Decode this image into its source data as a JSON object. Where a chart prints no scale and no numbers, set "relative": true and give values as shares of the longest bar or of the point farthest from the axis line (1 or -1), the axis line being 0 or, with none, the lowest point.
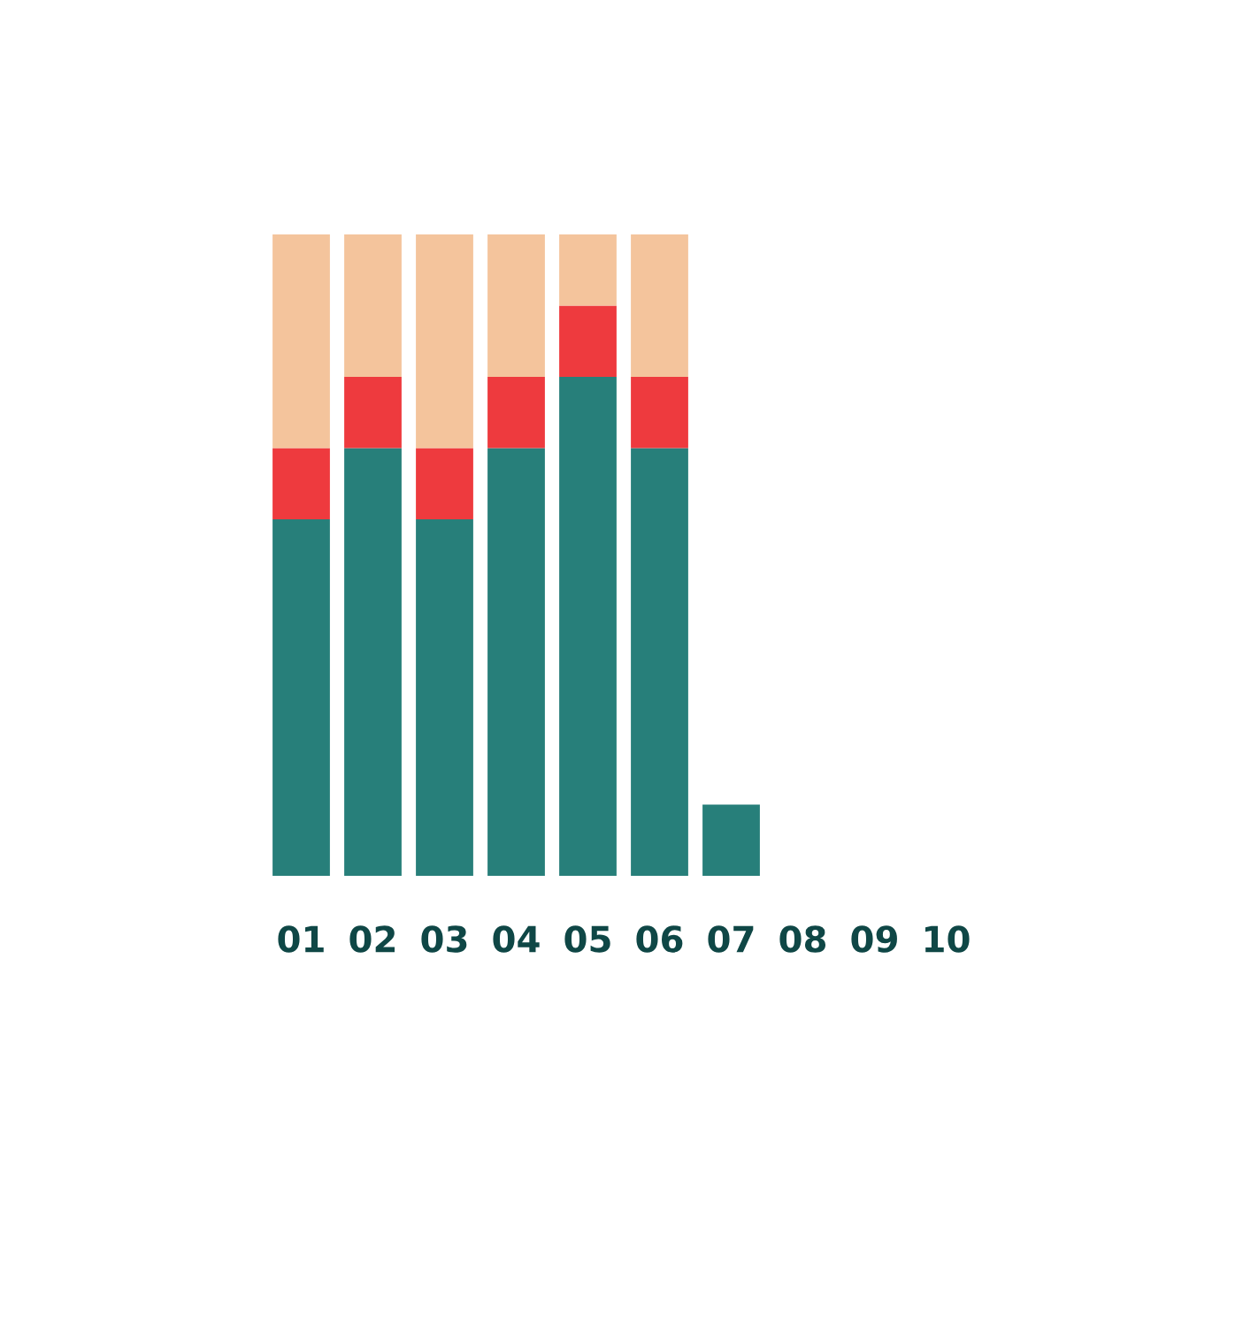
{
  "chart_data": {
    "type": "bar",
    "stacked": true,
    "relative": true,
    "categories": [
      "01",
      "02",
      "03",
      "04",
      "05",
      "06",
      "07",
      "08",
      "09",
      "10"
    ],
    "series": [
      {
        "color": "#277f7a",
        "values": [
          0.556,
          0.667,
          0.556,
          0.667,
          0.778,
          0.667,
          0.111,
          0,
          0,
          0
        ]
      },
      {
        "color": "#ee3a3e",
        "values": [
          0.111,
          0.111,
          0.111,
          0.111,
          0.111,
          0.111,
          0,
          0,
          0,
          0
        ]
      },
      {
        "color": "#f4c49c",
        "values": [
          0.333,
          0.222,
          0.333,
          0.222,
          0.111,
          0.222,
          0,
          0,
          0,
          0
        ]
      }
    ],
    "tick_labels": "x",
    "grid": false
  }
}
